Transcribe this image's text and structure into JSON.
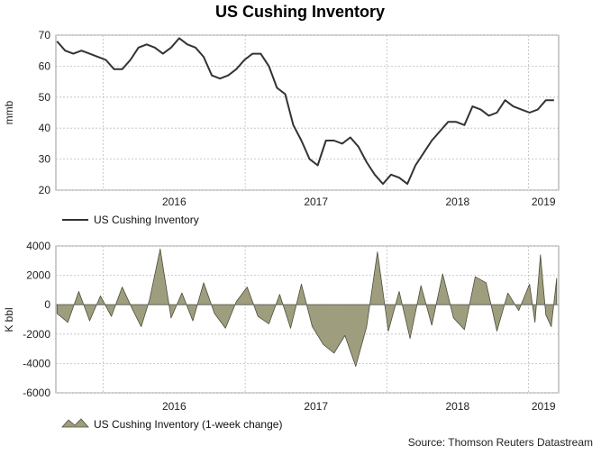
{
  "title": "US Cushing Inventory",
  "source": "Source: Thomson Reuters Datastream",
  "colors": {
    "line": "#333333",
    "area_fill": "#9e9e7f",
    "area_stroke": "#4d4d3a"
  },
  "chart_data": [
    {
      "type": "line",
      "ylabel": "mmb",
      "ylim": [
        20,
        70
      ],
      "yticks": [
        20,
        30,
        40,
        50,
        60,
        70
      ],
      "x_labels": [
        "2016",
        "2017",
        "2018",
        "2019"
      ],
      "xlim": [
        "2015-09-01",
        "2019-03-20"
      ],
      "grid": true,
      "legend": "bottom-left",
      "series": [
        {
          "name": "US Cushing Inventory",
          "x": [
            "2015-09-04",
            "2015-09-25",
            "2015-10-16",
            "2015-11-06",
            "2015-11-27",
            "2015-12-18",
            "2016-01-08",
            "2016-01-29",
            "2016-02-19",
            "2016-03-11",
            "2016-04-01",
            "2016-04-22",
            "2016-05-13",
            "2016-06-03",
            "2016-06-24",
            "2016-07-15",
            "2016-08-05",
            "2016-08-26",
            "2016-09-16",
            "2016-10-07",
            "2016-10-28",
            "2016-11-18",
            "2016-12-09",
            "2016-12-30",
            "2017-01-20",
            "2017-02-10",
            "2017-03-03",
            "2017-03-24",
            "2017-04-14",
            "2017-05-05",
            "2017-05-26",
            "2017-06-16",
            "2017-07-07",
            "2017-07-28",
            "2017-08-18",
            "2017-09-08",
            "2017-09-29",
            "2017-10-20",
            "2017-11-10",
            "2017-12-01",
            "2017-12-22",
            "2018-01-12",
            "2018-02-02",
            "2018-02-23",
            "2018-03-16",
            "2018-04-06",
            "2018-04-27",
            "2018-05-18",
            "2018-06-08",
            "2018-06-29",
            "2018-07-20",
            "2018-08-10",
            "2018-08-31",
            "2018-09-21",
            "2018-10-12",
            "2018-11-02",
            "2018-11-23",
            "2018-12-14",
            "2019-01-04",
            "2019-01-25",
            "2019-02-15",
            "2019-03-08"
          ],
          "values": [
            68,
            65,
            64,
            65,
            64,
            63,
            62,
            59,
            59,
            62,
            66,
            67,
            66,
            64,
            66,
            69,
            67,
            66,
            63,
            57,
            56,
            57,
            59,
            62,
            64,
            64,
            60,
            53,
            51,
            41,
            36,
            30,
            28,
            36,
            36,
            35,
            37,
            34,
            29,
            25,
            22,
            25,
            24,
            22,
            28,
            32,
            36,
            39,
            42,
            42,
            41,
            47,
            46,
            44,
            45,
            49,
            47,
            46,
            45,
            46,
            49,
            49
          ]
        }
      ]
    },
    {
      "type": "area",
      "ylabel": "K bbl",
      "ylim": [
        -6000,
        4000
      ],
      "yticks": [
        -6000,
        -4000,
        -2000,
        0,
        2000,
        4000
      ],
      "x_labels": [
        "2016",
        "2017",
        "2018",
        "2019"
      ],
      "xlim": [
        "2015-09-01",
        "2019-03-20"
      ],
      "grid": true,
      "legend": "bottom-left",
      "series": [
        {
          "name": "US Cushing Inventory (1-week change)",
          "x": [
            "2015-09-04",
            "2015-10-02",
            "2015-10-30",
            "2015-11-27",
            "2015-12-25",
            "2016-01-22",
            "2016-02-19",
            "2016-03-18",
            "2016-04-08",
            "2016-04-29",
            "2016-05-27",
            "2016-06-24",
            "2016-07-22",
            "2016-08-19",
            "2016-09-16",
            "2016-10-14",
            "2016-11-11",
            "2016-12-09",
            "2017-01-06",
            "2017-02-03",
            "2017-03-03",
            "2017-03-31",
            "2017-04-28",
            "2017-05-26",
            "2017-06-23",
            "2017-07-21",
            "2017-08-18",
            "2017-09-15",
            "2017-10-13",
            "2017-11-10",
            "2017-12-08",
            "2018-01-05",
            "2018-02-02",
            "2018-03-02",
            "2018-03-30",
            "2018-04-27",
            "2018-05-25",
            "2018-06-22",
            "2018-07-20",
            "2018-08-17",
            "2018-09-14",
            "2018-10-12",
            "2018-11-09",
            "2018-12-07",
            "2019-01-04",
            "2019-01-18",
            "2019-02-01",
            "2019-02-15",
            "2019-03-01",
            "2019-03-15"
          ],
          "values": [
            -600,
            -1200,
            900,
            -1100,
            600,
            -800,
            1200,
            -400,
            -1500,
            300,
            3800,
            -900,
            800,
            -1100,
            1500,
            -600,
            -1600,
            200,
            1200,
            -800,
            -1300,
            700,
            -1600,
            1400,
            -1500,
            -2700,
            -3300,
            -2100,
            -4200,
            -1500,
            3600,
            -1800,
            900,
            -2300,
            1300,
            -1400,
            2100,
            -900,
            -1700,
            1900,
            1500,
            -1800,
            800,
            -400,
            1400,
            -1200,
            3400,
            -700,
            -1500,
            1800
          ]
        }
      ]
    }
  ]
}
